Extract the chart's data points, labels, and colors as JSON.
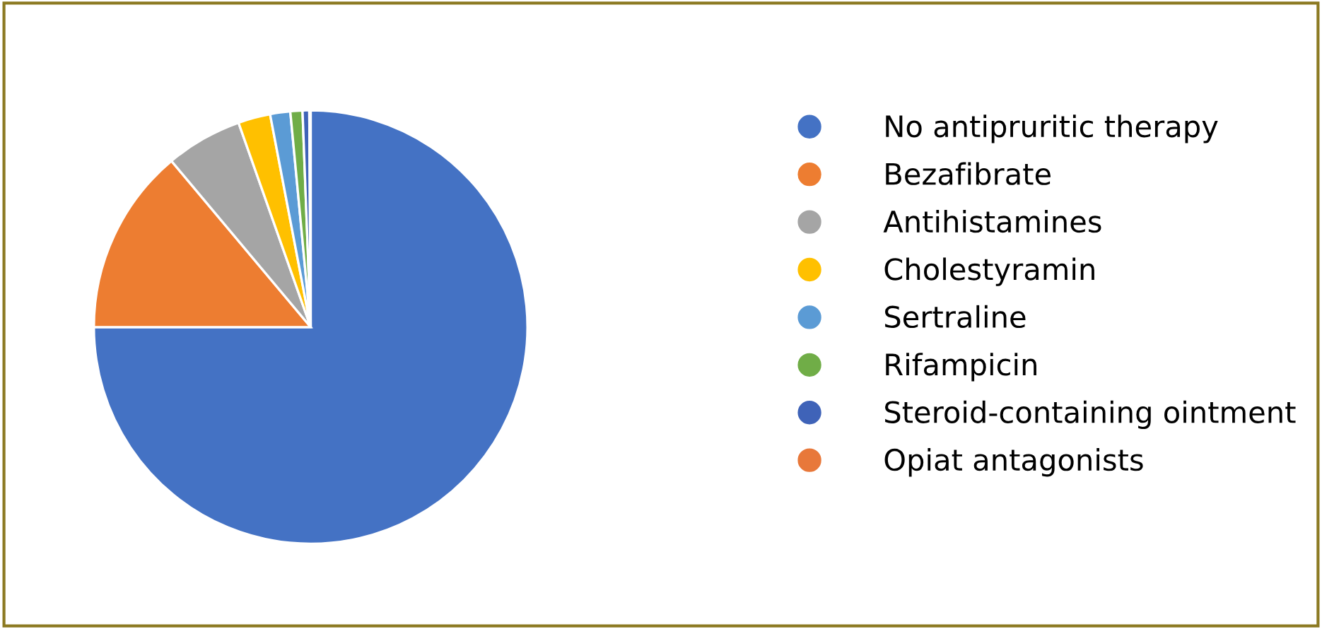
{
  "chart_data": {
    "type": "pie",
    "categories": [
      "No antipruritic therapy",
      "Bezafibrate",
      "Antihistamines",
      "Cholestyramin",
      "Sertraline",
      "Rifampicin",
      "Steroid-containing ointment",
      "Opiat antagonists"
    ],
    "values": [
      75,
      13.9,
      5.7,
      2.4,
      1.5,
      0.9,
      0.5,
      0.1
    ],
    "colors": [
      "#4472c4",
      "#ed7d31",
      "#a5a5a5",
      "#ffc000",
      "#5b9bd5",
      "#70ad47",
      "#3f63b8",
      "#e8783a"
    ],
    "legend": "right"
  }
}
